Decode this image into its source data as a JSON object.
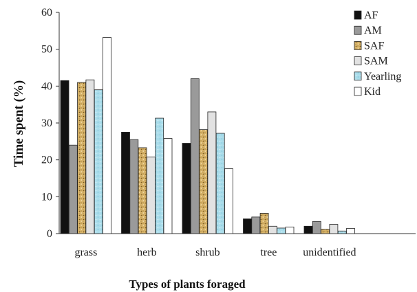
{
  "chart_data": {
    "type": "bar",
    "title": "",
    "xlabel": "Types of plants foraged",
    "ylabel": "Time spent (%)",
    "ylim": [
      0,
      60
    ],
    "yticks": [
      0,
      10,
      20,
      30,
      40,
      50,
      60
    ],
    "grid": false,
    "legend_position": "top-right",
    "categories": [
      "grass",
      "herb",
      "shrub",
      "tree",
      "unidentified"
    ],
    "series": [
      {
        "name": "AF",
        "color": "#111111",
        "pattern": "solid",
        "values": [
          41.5,
          27.5,
          24.5,
          4,
          2
        ]
      },
      {
        "name": "AM",
        "color": "#9a9a9a",
        "pattern": "solid",
        "values": [
          24,
          25.5,
          42,
          4.5,
          3.3
        ]
      },
      {
        "name": "SAF",
        "color": "#d9b56a",
        "pattern": "speckled-gold",
        "values": [
          41,
          23.3,
          28.2,
          5.5,
          1.2
        ]
      },
      {
        "name": "SAM",
        "color": "#e2e2e2",
        "pattern": "solid",
        "values": [
          41.7,
          20.8,
          33,
          2,
          2.5
        ]
      },
      {
        "name": "Yearling",
        "color": "#a9dcea",
        "pattern": "speckled-blue",
        "values": [
          39,
          31.3,
          27.2,
          1.5,
          0.7
        ]
      },
      {
        "name": "Kid",
        "color": "#ffffff",
        "pattern": "solid",
        "values": [
          53.2,
          25.8,
          17.6,
          1.8,
          1.4
        ]
      }
    ]
  }
}
